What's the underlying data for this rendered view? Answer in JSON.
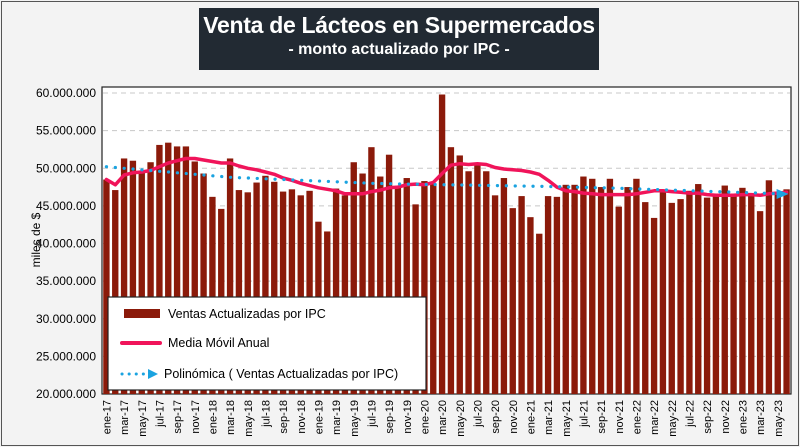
{
  "chart_data": {
    "type": "bar",
    "title": "Venta de Lácteos en Supermercados",
    "subtitle": "- monto actualizado por IPC -",
    "xlabel": "",
    "ylabel": "miles de $",
    "ylim": [
      20000000,
      60000000
    ],
    "yticks": [
      20000000,
      25000000,
      30000000,
      35000000,
      40000000,
      45000000,
      50000000,
      55000000,
      60000000
    ],
    "ytick_labels": [
      "20.000.000",
      "25.000.000",
      "30.000.000",
      "35.000.000",
      "40.000.000",
      "45.000.000",
      "50.000.000",
      "55.000.000",
      "60.000.000"
    ],
    "grid": "horizontal-dashed",
    "legend_position": "bottom-left",
    "categories": [
      "ene-17",
      "feb-17",
      "mar-17",
      "abr-17",
      "may-17",
      "jun-17",
      "jul-17",
      "ago-17",
      "sep-17",
      "oct-17",
      "nov-17",
      "dic-17",
      "ene-18",
      "feb-18",
      "mar-18",
      "abr-18",
      "may-18",
      "jun-18",
      "jul-18",
      "ago-18",
      "sep-18",
      "oct-18",
      "nov-18",
      "dic-18",
      "ene-19",
      "feb-19",
      "mar-19",
      "abr-19",
      "may-19",
      "jun-19",
      "jul-19",
      "ago-19",
      "sep-19",
      "oct-19",
      "nov-19",
      "dic-19",
      "ene-20",
      "feb-20",
      "mar-20",
      "abr-20",
      "may-20",
      "jun-20",
      "jul-20",
      "ago-20",
      "sep-20",
      "oct-20",
      "nov-20",
      "dic-20",
      "ene-21",
      "feb-21",
      "mar-21",
      "abr-21",
      "may-21",
      "jun-21",
      "jul-21",
      "ago-21",
      "sep-21",
      "oct-21",
      "nov-21",
      "dic-21",
      "ene-22",
      "feb-22",
      "mar-22",
      "abr-22",
      "may-22",
      "jun-22",
      "jul-22",
      "ago-22",
      "sep-22",
      "oct-22",
      "nov-22",
      "dic-22",
      "ene-23",
      "feb-23",
      "mar-23",
      "abr-23",
      "may-23",
      "jun-23"
    ],
    "xtick_labels": [
      "ene-17",
      "mar-17",
      "may-17",
      "jul-17",
      "sep-17",
      "nov-17",
      "ene-18",
      "mar-18",
      "may-18",
      "jul-18",
      "sep-18",
      "nov-18",
      "ene-19",
      "mar-19",
      "may-19",
      "jul-19",
      "sep-19",
      "nov-19",
      "ene-20",
      "mar-20",
      "may-20",
      "jul-20",
      "sep-20",
      "nov-20",
      "ene-21",
      "mar-21",
      "may-21",
      "jul-21",
      "sep-21",
      "nov-21",
      "ene-22",
      "mar-22",
      "may-22",
      "jul-22",
      "sep-22",
      "nov-22",
      "ene-23",
      "mar-23",
      "may-23"
    ],
    "series": [
      {
        "name": "Ventas Actualizadas por IPC",
        "type": "bar",
        "color": "#8b1a0a",
        "values": [
          48500000,
          47100000,
          51300000,
          51000000,
          49600000,
          50800000,
          53100000,
          53400000,
          52900000,
          52900000,
          50900000,
          49300000,
          46200000,
          44600000,
          51300000,
          47100000,
          46800000,
          48100000,
          49000000,
          48200000,
          46900000,
          47200000,
          46400000,
          47000000,
          42900000,
          41600000,
          47300000,
          46400000,
          50800000,
          49300000,
          52800000,
          48900000,
          51800000,
          47500000,
          48700000,
          45200000,
          48300000,
          48000000,
          59800000,
          52800000,
          51700000,
          49600000,
          50700000,
          49600000,
          46400000,
          48700000,
          44700000,
          46300000,
          43500000,
          41300000,
          46300000,
          46200000,
          47800000,
          47800000,
          48900000,
          48600000,
          47500000,
          48600000,
          44900000,
          47500000,
          48600000,
          45500000,
          43400000,
          46900000,
          45400000,
          45900000,
          47000000,
          47900000,
          46100000,
          46500000,
          47700000,
          46400000,
          47400000,
          46400000,
          44300000,
          48400000,
          46900000,
          47200000
        ]
      },
      {
        "name": "Media Móvil Anual",
        "type": "line",
        "color": "#f0145a",
        "values": [
          48500000,
          47800000,
          49100000,
          49400000,
          49500000,
          49700000,
          50200000,
          50700000,
          51000000,
          51300000,
          51300000,
          51100000,
          50900000,
          50700000,
          50700000,
          50300000,
          50000000,
          49800000,
          49500000,
          49200000,
          48700000,
          48400000,
          48000000,
          47700000,
          47400000,
          47200000,
          47000000,
          46600000,
          46600000,
          46600000,
          46900000,
          47100000,
          47400000,
          47500000,
          47800000,
          47900000,
          47800000,
          48100000,
          49300000,
          50400000,
          50600000,
          50500000,
          50600000,
          50500000,
          50100000,
          49900000,
          49800000,
          49700000,
          49500000,
          49200000,
          48400000,
          47500000,
          47000000,
          46900000,
          46700000,
          46600000,
          46500000,
          46500000,
          46500000,
          46500000,
          46600000,
          46800000,
          47000000,
          47000000,
          46900000,
          46800000,
          46700000,
          46700000,
          46500000,
          46400000,
          46400000,
          46400000,
          46500000,
          46500000,
          46400000,
          46600000,
          46700000,
          46800000
        ]
      },
      {
        "name": "Polinómica ( Ventas Actualizadas por IPC)",
        "type": "trendline",
        "color": "#1aa3e0",
        "values": [
          50200000,
          50100000,
          50000000,
          49900000,
          49800000,
          49700000,
          49600000,
          49500000,
          49400000,
          49300000,
          49200000,
          49100000,
          49000000,
          48900000,
          48800000,
          48750000,
          48700000,
          48650000,
          48600000,
          48550000,
          48500000,
          48450000,
          48400000,
          48350000,
          48300000,
          48250000,
          48200000,
          48150000,
          48100000,
          48050000,
          48000000,
          47980000,
          47950000,
          47920000,
          47900000,
          47880000,
          47860000,
          47840000,
          47820000,
          47800000,
          47780000,
          47760000,
          47740000,
          47720000,
          47700000,
          47680000,
          47660000,
          47640000,
          47620000,
          47600000,
          47580000,
          47550000,
          47520000,
          47490000,
          47460000,
          47430000,
          47400000,
          47370000,
          47340000,
          47300000,
          47260000,
          47220000,
          47180000,
          47140000,
          47100000,
          47060000,
          47020000,
          46980000,
          46940000,
          46900000,
          46860000,
          46820000,
          46780000,
          46740000,
          46700000,
          46660000,
          46620000,
          46580000
        ]
      }
    ],
    "legend": [
      {
        "label": "Ventas Actualizadas por IPC",
        "marker": "bar"
      },
      {
        "label": "Media Móvil Anual",
        "marker": "line"
      },
      {
        "label": "Polinómica ( Ventas Actualizadas por IPC)",
        "marker": "dotted-arrow"
      }
    ]
  }
}
